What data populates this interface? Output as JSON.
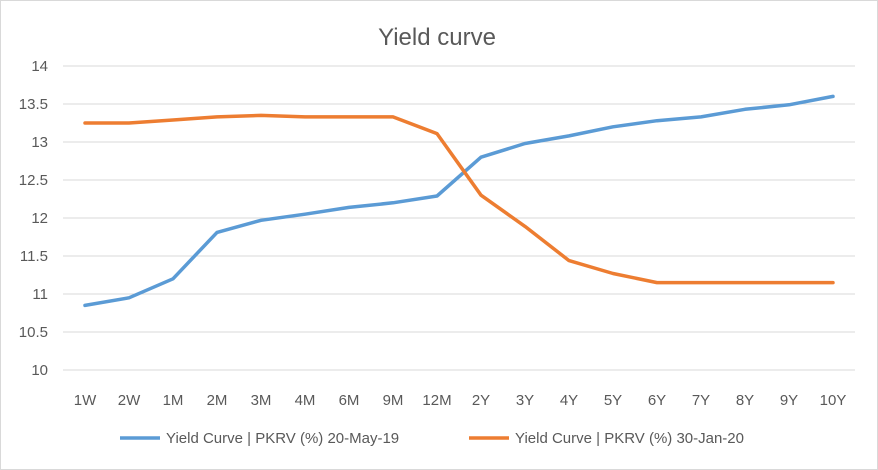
{
  "chart_data": {
    "type": "line",
    "title": "Yield curve",
    "xlabel": "",
    "ylabel": "",
    "categories": [
      "1W",
      "2W",
      "1M",
      "2M",
      "3M",
      "4M",
      "6M",
      "9M",
      "12M",
      "2Y",
      "3Y",
      "4Y",
      "5Y",
      "6Y",
      "7Y",
      "8Y",
      "9Y",
      "10Y"
    ],
    "y_ticks": [
      "10",
      "10.5",
      "11",
      "11.5",
      "12",
      "12.5",
      "13",
      "13.5",
      "14"
    ],
    "ylim": [
      10,
      14
    ],
    "grid": true,
    "legend_position": "bottom",
    "series": [
      {
        "name": "Yield Curve | PKRV (%) 20-May-19",
        "color": "#5b9bd5",
        "values": [
          10.85,
          10.95,
          11.2,
          11.81,
          11.97,
          12.05,
          12.14,
          12.2,
          12.29,
          12.8,
          12.98,
          13.08,
          13.2,
          13.28,
          13.33,
          13.43,
          13.49,
          13.6
        ]
      },
      {
        "name": "Yield Curve | PKRV (%) 30-Jan-20",
        "color": "#ed7d31",
        "values": [
          13.25,
          13.25,
          13.29,
          13.33,
          13.35,
          13.33,
          13.33,
          13.33,
          13.11,
          12.3,
          11.89,
          11.44,
          11.27,
          11.15,
          11.15,
          11.15,
          11.15,
          11.15
        ]
      }
    ]
  }
}
